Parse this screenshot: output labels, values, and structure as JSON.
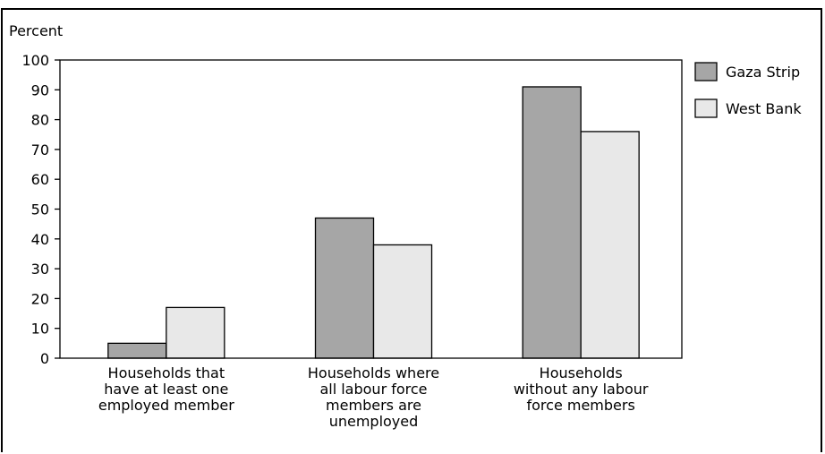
{
  "chart_data": {
    "type": "bar",
    "ylabel": "Percent",
    "ylim": [
      0,
      100
    ],
    "yticks": [
      0,
      10,
      20,
      30,
      40,
      50,
      60,
      70,
      80,
      90,
      100
    ],
    "grid": false,
    "legend_position": "top-right",
    "categories": [
      "Households that have at least one employed member",
      "Households where all labour force members are unemployed",
      "Households without any labour force members"
    ],
    "category_lines": [
      [
        "Households that",
        "have at least one",
        "employed member"
      ],
      [
        "Households where",
        "all labour force",
        "members are",
        "unemployed"
      ],
      [
        "Households",
        "without any labour",
        "force members"
      ]
    ],
    "series": [
      {
        "name": "Gaza Strip",
        "color": "#a6a6a6",
        "values": [
          5,
          47,
          91
        ]
      },
      {
        "name": "West Bank",
        "color": "#e8e8e8",
        "values": [
          17,
          38,
          76
        ]
      }
    ]
  }
}
